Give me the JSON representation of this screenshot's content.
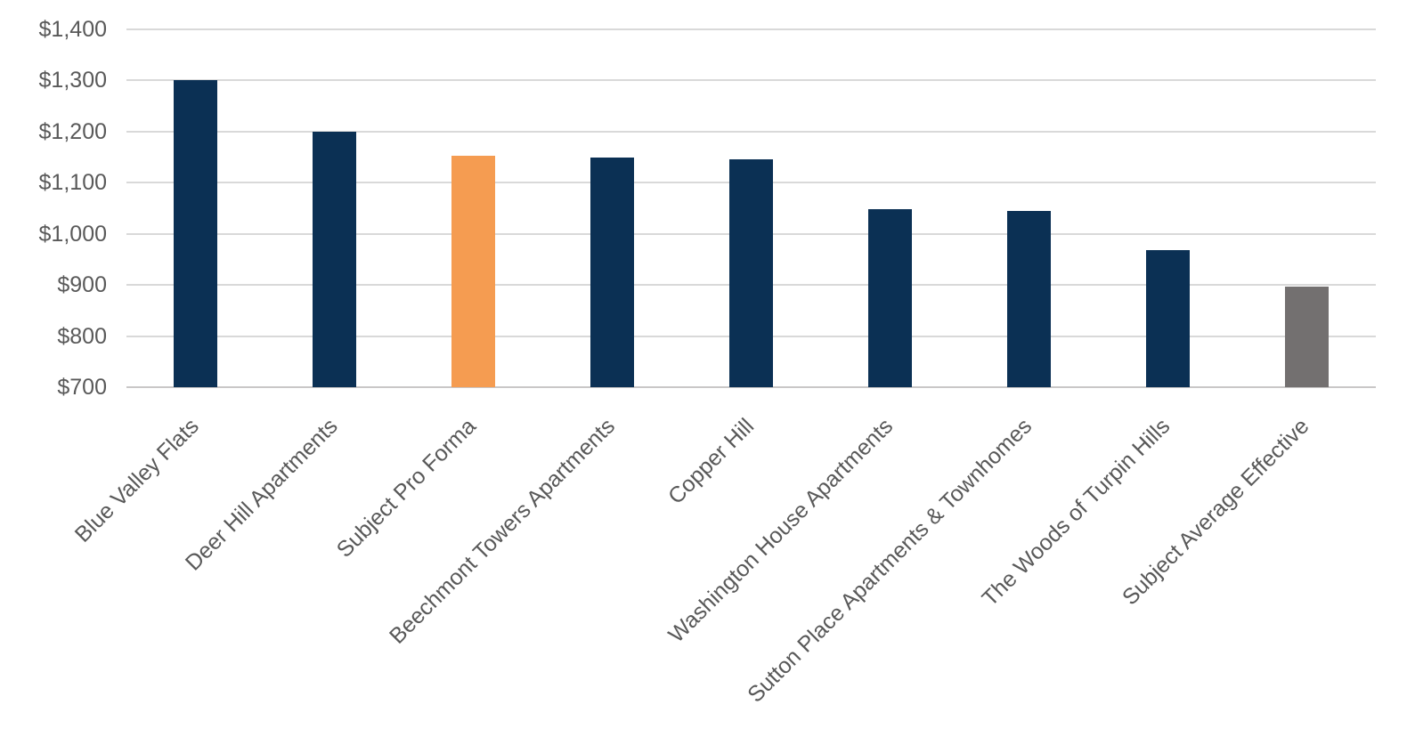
{
  "chart_data": {
    "type": "bar",
    "title": "",
    "xlabel": "",
    "ylabel": "",
    "categories": [
      "Blue Valley Flats",
      "Deer Hill Apartments",
      "Subject Pro Forma",
      "Beechmont Towers Apartments",
      "Copper Hill",
      "Washington House Apartments",
      "Sutton Place Apartments & Townhomes",
      "The Woods of Turpin Hills",
      "Subject Average Effective"
    ],
    "values": [
      1300,
      1200,
      1152,
      1150,
      1146,
      1049,
      1044,
      968,
      897
    ],
    "bar_colors": [
      "#0B3054",
      "#0B3054",
      "#F59C51",
      "#0B3054",
      "#0B3054",
      "#0B3054",
      "#0B3054",
      "#0B3054",
      "#737070"
    ],
    "ylim": [
      700,
      1400
    ],
    "ytick_step": 100,
    "ytick_values": [
      700,
      800,
      900,
      1000,
      1100,
      1200,
      1300,
      1400
    ],
    "ytick_labels": [
      "$700",
      "$800",
      "$900",
      "$1,000",
      "$1,100",
      "$1,200",
      "$1,300",
      "$1,400"
    ],
    "grid": true,
    "legend": "none",
    "category_label_rotation_deg": 45,
    "colors": {
      "default_bar": "#0B3054",
      "highlight_bar": "#F59C51",
      "summary_bar": "#737070",
      "gridline": "#D9D9D9",
      "axis_line": "#C9C7C7",
      "tick_label_text": "#595959"
    }
  }
}
